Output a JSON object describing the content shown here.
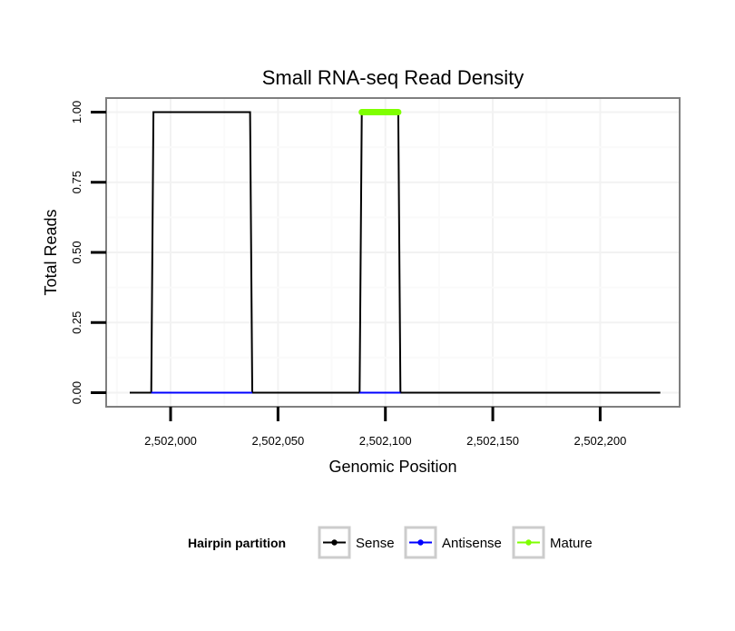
{
  "chart_data": {
    "type": "line",
    "title": "Small RNA-seq Read Density",
    "xlabel": "Genomic Position",
    "ylabel": "Total Reads",
    "xlim": [
      2501970,
      2502237
    ],
    "ylim": [
      -0.05,
      1.05
    ],
    "x_ticks": [
      {
        "value": 2502000,
        "label": "2,502,000"
      },
      {
        "value": 2502050,
        "label": "2,502,050"
      },
      {
        "value": 2502100,
        "label": "2,502,100"
      },
      {
        "value": 2502150,
        "label": "2,502,150"
      },
      {
        "value": 2502200,
        "label": "2,502,200"
      }
    ],
    "y_ticks": [
      {
        "value": 0,
        "label": "0.00"
      },
      {
        "value": 0.25,
        "label": "0.25"
      },
      {
        "value": 0.5,
        "label": "0.50"
      },
      {
        "value": 0.75,
        "label": "0.75"
      },
      {
        "value": 1,
        "label": "1.00"
      }
    ],
    "grid": true,
    "series": [
      {
        "name": "Sense",
        "color": "#000000",
        "stroke": "thin",
        "points": [
          [
            2501981,
            0
          ],
          [
            2501991,
            0
          ],
          [
            2501992,
            1
          ],
          [
            2502037,
            1
          ],
          [
            2502038,
            0
          ],
          [
            2502088,
            0
          ],
          [
            2502089,
            1
          ],
          [
            2502106,
            1
          ],
          [
            2502107,
            0
          ],
          [
            2502228,
            0
          ]
        ]
      },
      {
        "name": "Antisense",
        "color": "#0000ff",
        "stroke": "thin",
        "points": [
          [
            2501991,
            0
          ],
          [
            2502038,
            0
          ],
          [
            2502088,
            0
          ],
          [
            2502107,
            0
          ]
        ]
      },
      {
        "name": "Mature",
        "color": "#7fff00",
        "stroke": "thick",
        "points": [
          [
            2502089,
            1
          ],
          [
            2502106,
            1
          ]
        ]
      }
    ],
    "legend": {
      "title": "Hairpin partition",
      "position": "bottom",
      "items": [
        {
          "label": "Sense",
          "color": "#000000"
        },
        {
          "label": "Antisense",
          "color": "#0000ff"
        },
        {
          "label": "Mature",
          "color": "#7fff00"
        }
      ]
    }
  }
}
